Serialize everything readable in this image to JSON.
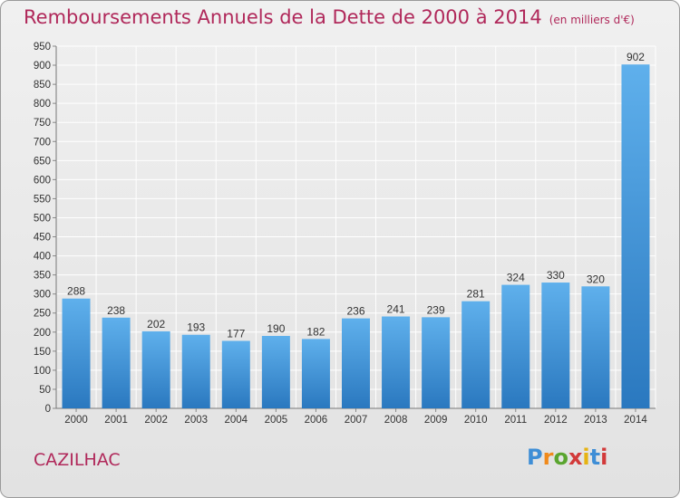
{
  "chart_data": {
    "type": "bar",
    "title": "Remboursements Annuels de la Dette de 2000 à 2014",
    "subtitle": "(en milliers d'€)",
    "xlabel": "",
    "ylabel": "",
    "categories": [
      "2000",
      "2001",
      "2002",
      "2003",
      "2004",
      "2005",
      "2006",
      "2007",
      "2008",
      "2009",
      "2010",
      "2011",
      "2012",
      "2013",
      "2014"
    ],
    "values": [
      288,
      238,
      202,
      193,
      177,
      190,
      182,
      236,
      241,
      239,
      281,
      324,
      330,
      320,
      902
    ],
    "ylim": [
      0,
      950
    ],
    "yticks": [
      0,
      50,
      100,
      150,
      200,
      250,
      300,
      350,
      400,
      450,
      500,
      550,
      600,
      650,
      700,
      750,
      800,
      850,
      900,
      950
    ],
    "grid": true,
    "legend": "none",
    "bar_color": "#3a8fd4"
  },
  "footer": {
    "commune": "CAZILHAC",
    "brand": "Proxiti"
  }
}
